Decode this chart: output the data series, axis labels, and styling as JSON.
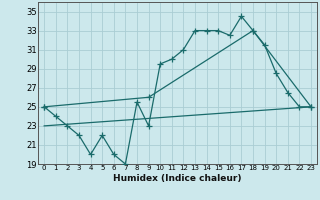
{
  "xlabel": "Humidex (Indice chaleur)",
  "background_color": "#cce8ec",
  "grid_color": "#aacdd4",
  "line_color": "#1a6b6b",
  "xlim": [
    -0.5,
    23.5
  ],
  "ylim": [
    19,
    36
  ],
  "yticks": [
    19,
    21,
    23,
    25,
    27,
    29,
    31,
    33,
    35
  ],
  "xtick_labels": [
    "0",
    "1",
    "2",
    "3",
    "4",
    "5",
    "6",
    "7",
    "8",
    "9",
    "10",
    "11",
    "12",
    "13",
    "14",
    "15",
    "16",
    "17",
    "18",
    "19",
    "20",
    "21",
    "22",
    "23"
  ],
  "xtick_pos": [
    0,
    1,
    2,
    3,
    4,
    5,
    6,
    7,
    8,
    9,
    10,
    11,
    12,
    13,
    14,
    15,
    16,
    17,
    18,
    19,
    20,
    21,
    22,
    23
  ],
  "line1_x": [
    0,
    1,
    2,
    3,
    4,
    5,
    6,
    7,
    8,
    9,
    10,
    11,
    12,
    13,
    14,
    15,
    16,
    17,
    18,
    19,
    20,
    21,
    22,
    23
  ],
  "line1_y": [
    25,
    24,
    23,
    22,
    20,
    22,
    20,
    19,
    25.5,
    23,
    29.5,
    30,
    31,
    33,
    33,
    33,
    32.5,
    34.5,
    33,
    31.5,
    28.5,
    26.5,
    25,
    25
  ],
  "line2_x": [
    0,
    9,
    18,
    23
  ],
  "line2_y": [
    25,
    26,
    33,
    25
  ],
  "line3_x": [
    0,
    23
  ],
  "line3_y": [
    23,
    25
  ],
  "marker": "+",
  "markersize": 4,
  "linewidth": 0.9
}
